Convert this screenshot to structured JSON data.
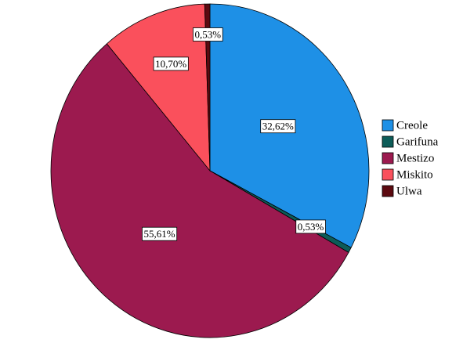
{
  "chart_data": {
    "type": "pie",
    "categories": [
      "Creole",
      "Garifuna",
      "Mestizo",
      "Miskito",
      "Ulwa"
    ],
    "values": [
      32.62,
      0.53,
      55.61,
      10.7,
      0.53
    ],
    "value_labels": [
      "32,62%",
      "0,53%",
      "55,61%",
      "10,70%",
      "0,53%"
    ],
    "colors": [
      "#1e90e6",
      "#0d5c58",
      "#9c1a4f",
      "#fa505c",
      "#5c0a10"
    ],
    "legend": "right"
  }
}
